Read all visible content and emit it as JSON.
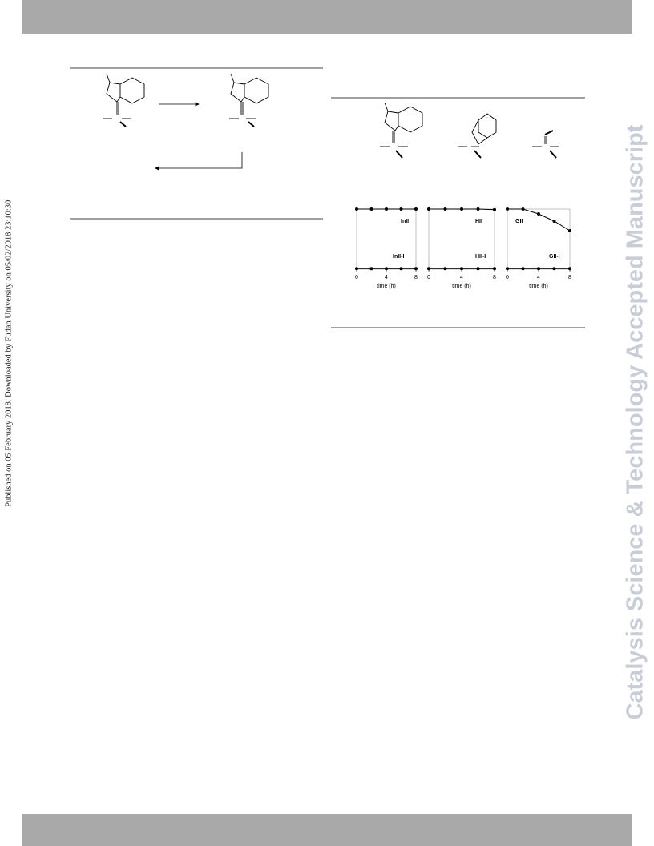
{
  "sidebar_left": "Published on 05 February 2018. Downloaded by Fudan University on 05/02/2018 23:10:30.",
  "sidebar_right": "Catalysis Science & Technology Accepted Manuscript",
  "chart_data": [
    {
      "type": "line",
      "x": [
        0,
        2,
        4,
        6,
        8
      ],
      "xlim": [
        0,
        8
      ],
      "xticks": [
        0,
        4,
        8
      ],
      "xlabel": "time (h)",
      "ylim": [
        0,
        100
      ],
      "series": [
        {
          "name": "InII",
          "color": "#000000",
          "values": [
            100,
            100,
            100,
            100,
            100
          ]
        },
        {
          "name": "InII-I",
          "color": "#000000",
          "values": [
            1,
            1,
            1,
            1,
            1
          ]
        }
      ]
    },
    {
      "type": "line",
      "x": [
        0,
        2,
        4,
        6,
        8
      ],
      "xlim": [
        0,
        8
      ],
      "xticks": [
        0,
        4,
        8
      ],
      "xlabel": "time (h)",
      "ylim": [
        0,
        100
      ],
      "series": [
        {
          "name": "HII",
          "color": "#000000",
          "values": [
            100,
            100,
            100,
            100,
            99
          ]
        },
        {
          "name": "HII-I",
          "color": "#000000",
          "values": [
            1,
            1,
            1,
            1,
            1
          ]
        }
      ]
    },
    {
      "type": "line",
      "x": [
        0,
        2,
        4,
        6,
        8
      ],
      "xlim": [
        0,
        8
      ],
      "xticks": [
        0,
        4,
        8
      ],
      "xlabel": "time (h)",
      "ylim": [
        0,
        100
      ],
      "series": [
        {
          "name": "GII",
          "color": "#000000",
          "values": [
            100,
            100,
            92,
            80,
            64
          ]
        },
        {
          "name": "GII-I",
          "color": "#000000",
          "values": [
            1,
            1,
            1,
            1,
            1
          ]
        }
      ]
    }
  ]
}
